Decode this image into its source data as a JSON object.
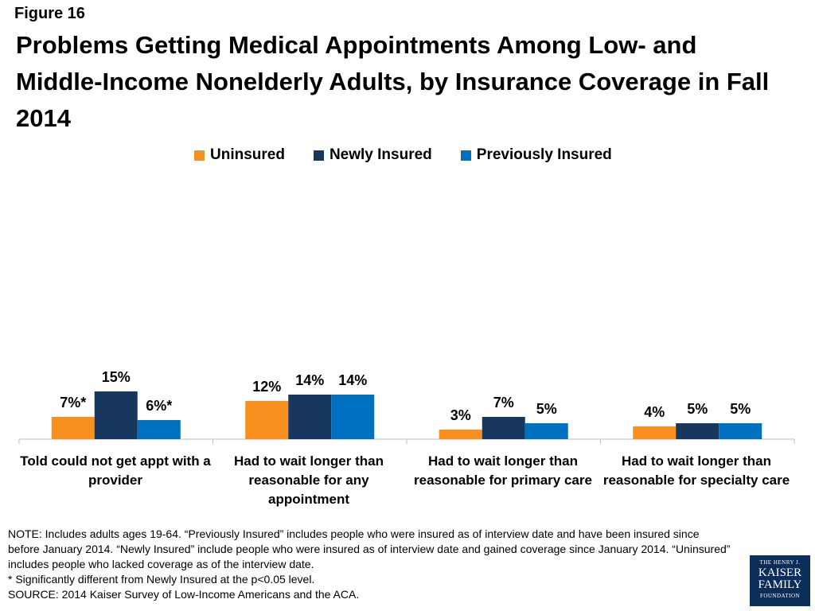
{
  "figure_label": "Figure 16",
  "title": "Problems Getting Medical Appointments Among Low- and Middle-Income Nonelderly Adults, by Insurance Coverage in Fall 2014",
  "colors": {
    "Uninsured": "#F7901E",
    "Newly Insured": "#17375E",
    "Previously Insured": "#0070C0"
  },
  "chart_data": {
    "type": "bar",
    "categories": [
      "Told could not get appt with a provider",
      "Had to wait longer than reasonable for any appointment",
      "Had to wait longer than reasonable for primary care",
      "Had to wait longer than reasonable for specialty care"
    ],
    "series": [
      {
        "name": "Uninsured",
        "values": [
          7,
          12,
          3,
          4
        ],
        "labels": [
          "7%*",
          "12%",
          "3%",
          "4%"
        ]
      },
      {
        "name": "Newly Insured",
        "values": [
          15,
          14,
          7,
          5
        ],
        "labels": [
          "15%",
          "14%",
          "7%",
          "5%"
        ]
      },
      {
        "name": "Previously Insured",
        "values": [
          6,
          14,
          5,
          5
        ],
        "labels": [
          "6%*",
          "14%",
          "5%",
          "5%"
        ]
      }
    ],
    "legend_position": "top",
    "grid": false
  },
  "note": {
    "line1": "NOTE: Includes adults ages 19-64. “Previously Insured” includes people who were insured as of interview date and have been insured since before January 2014. “Newly Insured” include people who were insured as of interview date and gained coverage since January 2014. “Uninsured” includes people who lacked coverage as of the interview date.",
    "line2": "* Significantly different from Newly Insured at the p<0.05 level.",
    "line3": "SOURCE: 2014 Kaiser Survey of Low-Income Americans and the ACA."
  },
  "logo": {
    "line1": "THE HENRY J.",
    "line2": "KAISER",
    "line3": "FAMILY",
    "line4": "FOUNDATION"
  }
}
